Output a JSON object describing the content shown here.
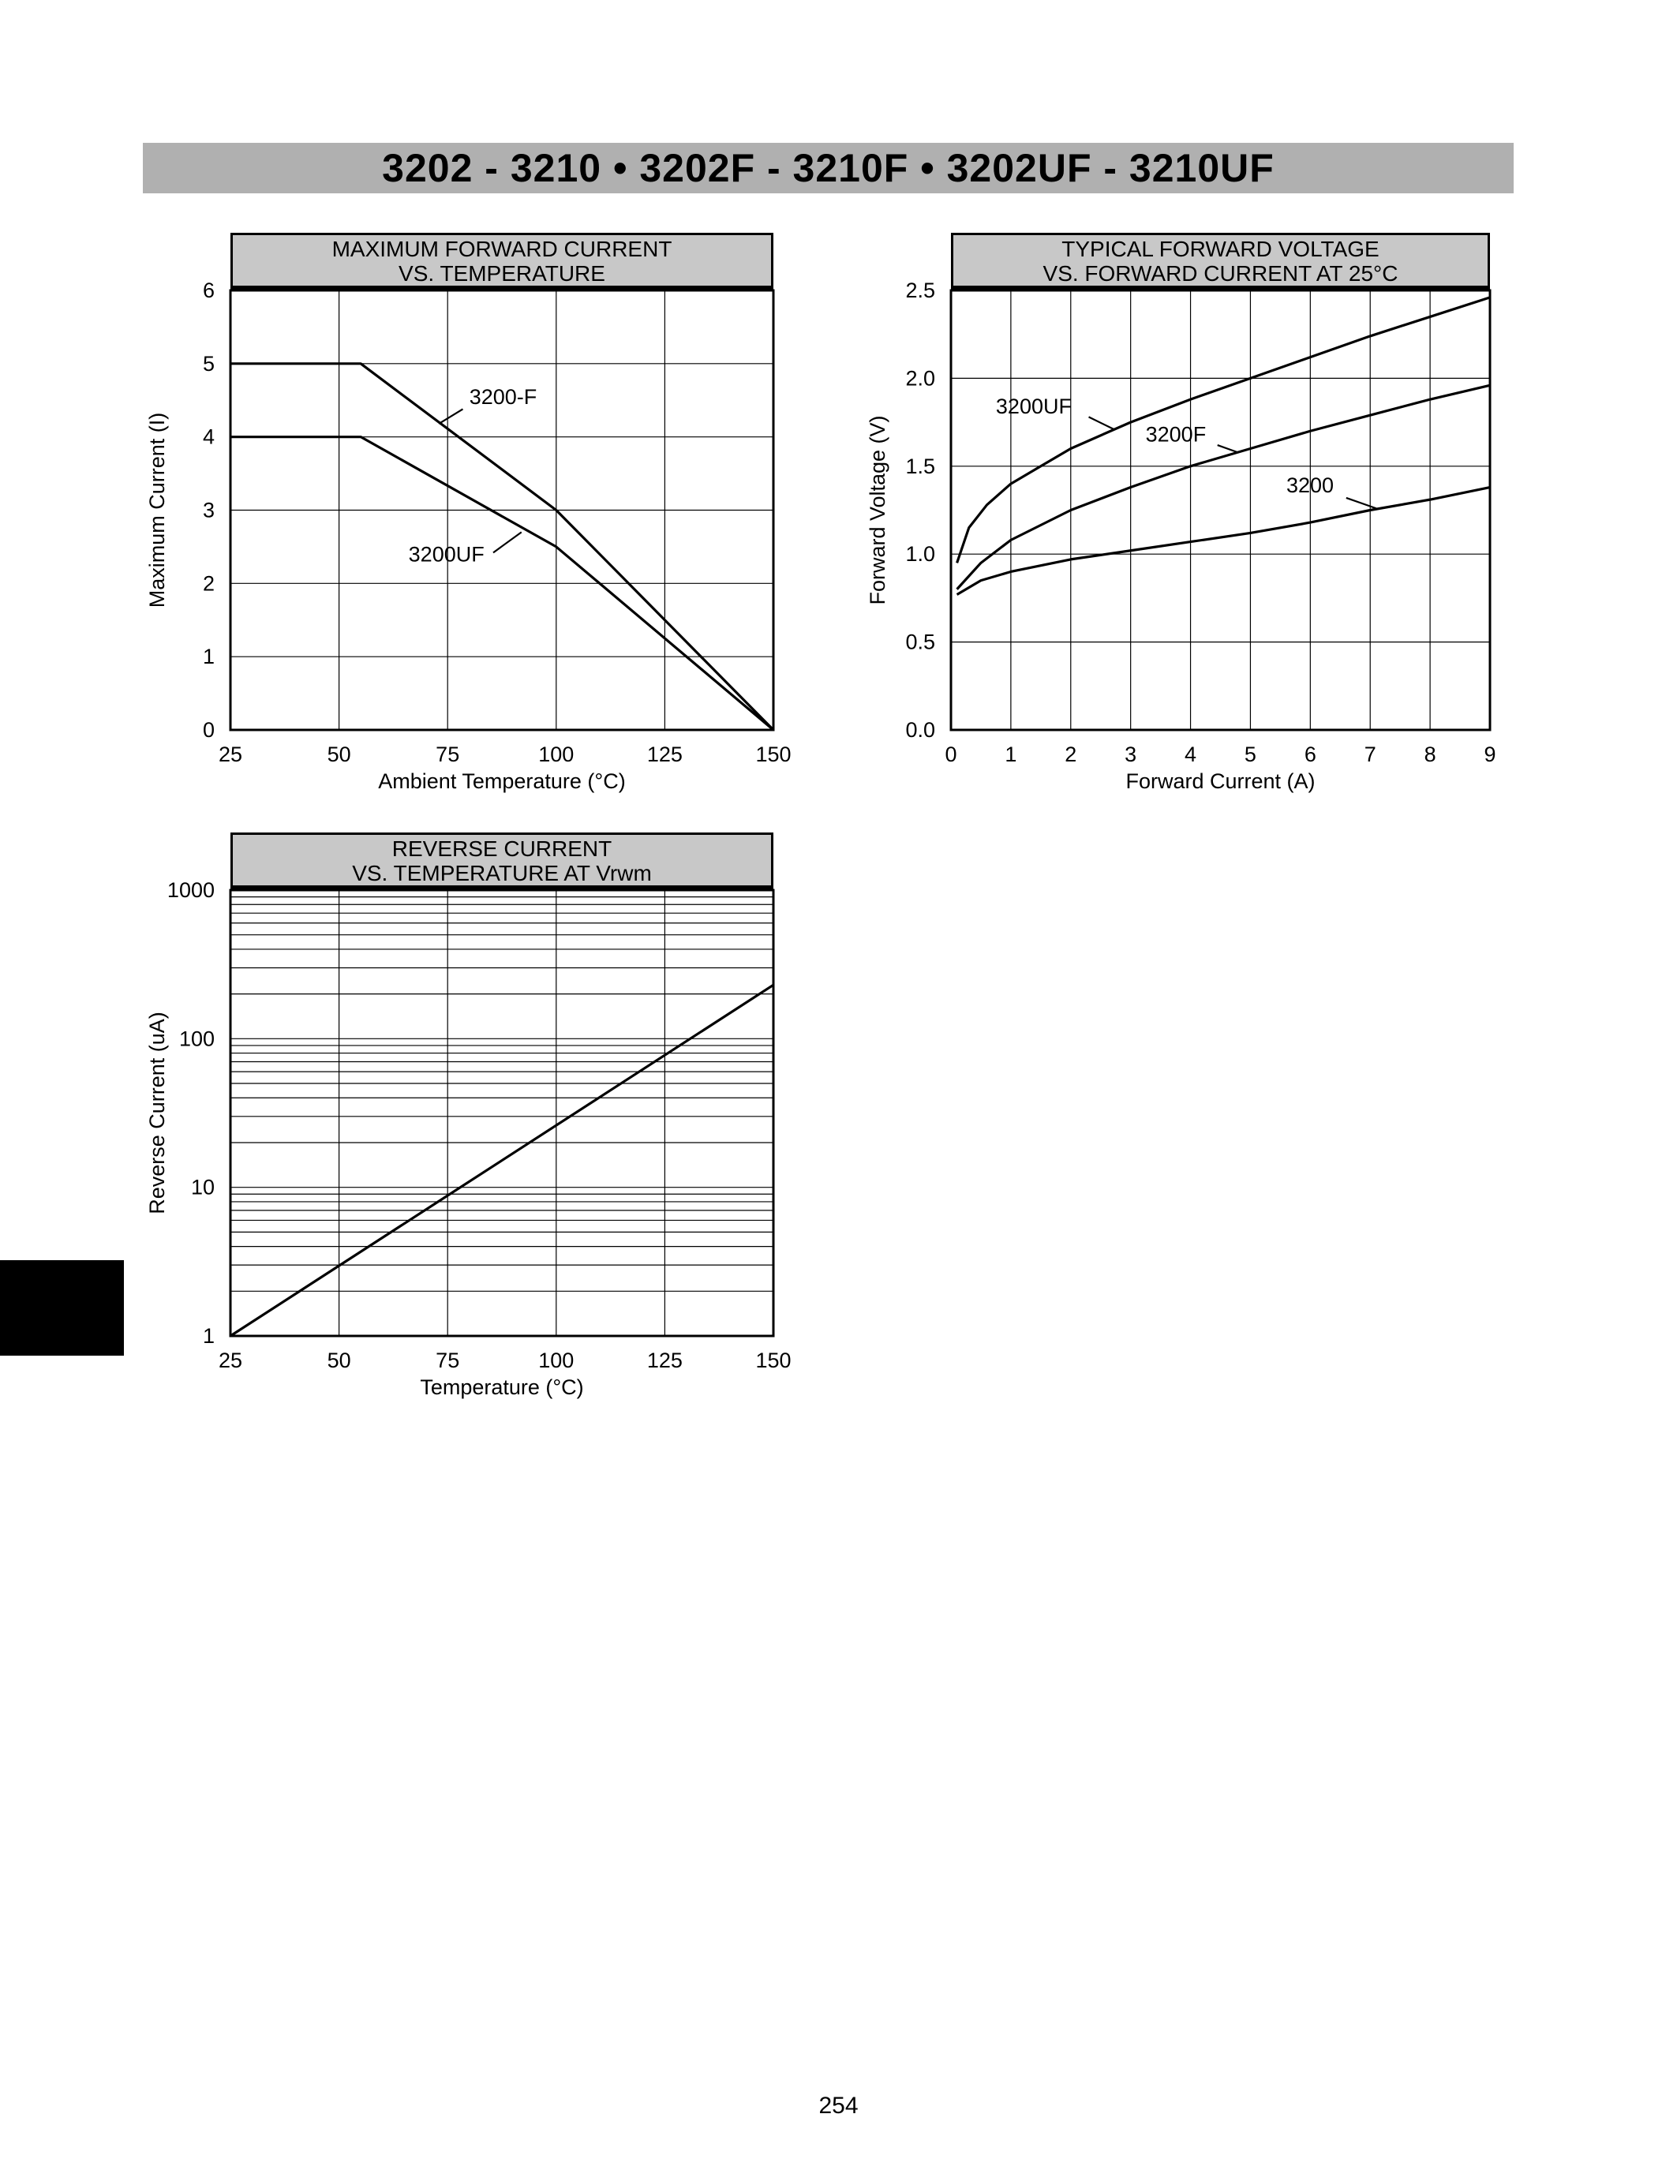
{
  "page": {
    "header": "3202 - 3210 • 3202F - 3210F • 3202UF - 3210UF",
    "page_number": "254"
  },
  "chart_data": [
    {
      "type": "line",
      "title_lines": [
        "MAXIMUM FORWARD CURRENT",
        "VS. TEMPERATURE"
      ],
      "xlabel": "Ambient Temperature (°C)",
      "ylabel": "Maximum Current (I)",
      "xlim": [
        25,
        150
      ],
      "ylim": [
        0,
        6
      ],
      "xticks": [
        25,
        50,
        75,
        100,
        125,
        150
      ],
      "yticks": [
        0,
        1,
        2,
        3,
        4,
        5,
        6
      ],
      "grid": "both",
      "series": [
        {
          "name": "3200-F",
          "points": [
            [
              25,
              5
            ],
            [
              55,
              5
            ],
            [
              100,
              3
            ],
            [
              150,
              0
            ]
          ]
        },
        {
          "name": "3200UF",
          "points": [
            [
              25,
              4
            ],
            [
              55,
              4
            ],
            [
              100,
              2.5
            ],
            [
              150,
              0
            ]
          ]
        }
      ],
      "annotations": [
        {
          "text": "3200-F",
          "x": 80,
          "y": 4.45,
          "leader": [
            [
              78.5,
              4.38
            ],
            [
              73,
              4.18
            ]
          ]
        },
        {
          "text": "3200UF",
          "x": 66,
          "y": 2.3,
          "leader": [
            [
              85.5,
              2.42
            ],
            [
              92,
              2.7
            ]
          ]
        }
      ]
    },
    {
      "type": "line",
      "title_lines": [
        "TYPICAL FORWARD VOLTAGE",
        "VS. FORWARD CURRENT AT 25°C"
      ],
      "xlabel": "Forward Current (A)",
      "ylabel": "Forward Voltage (V)",
      "xlim": [
        0,
        9
      ],
      "ylim": [
        0,
        2.5
      ],
      "xticks": [
        0,
        1,
        2,
        3,
        4,
        5,
        6,
        7,
        8,
        9
      ],
      "yticks": [
        0,
        0.5,
        1,
        1.5,
        2,
        2.5
      ],
      "ytick_labels": [
        "0.0",
        "0.5",
        "1.0",
        "1.5",
        "2.0",
        "2.5"
      ],
      "grid": "both",
      "series": [
        {
          "name": "3200UF",
          "points": [
            [
              0.1,
              0.95
            ],
            [
              0.3,
              1.15
            ],
            [
              0.6,
              1.28
            ],
            [
              1,
              1.4
            ],
            [
              1.5,
              1.5
            ],
            [
              2,
              1.6
            ],
            [
              3,
              1.75
            ],
            [
              4,
              1.88
            ],
            [
              5,
              2.0
            ],
            [
              6,
              2.12
            ],
            [
              7,
              2.24
            ],
            [
              8,
              2.35
            ],
            [
              9,
              2.46
            ]
          ]
        },
        {
          "name": "3200F",
          "points": [
            [
              0.1,
              0.8
            ],
            [
              0.5,
              0.95
            ],
            [
              1,
              1.08
            ],
            [
              2,
              1.25
            ],
            [
              3,
              1.38
            ],
            [
              4,
              1.5
            ],
            [
              5,
              1.6
            ],
            [
              6,
              1.7
            ],
            [
              7,
              1.79
            ],
            [
              8,
              1.88
            ],
            [
              9,
              1.96
            ]
          ]
        },
        {
          "name": "3200",
          "points": [
            [
              0.1,
              0.77
            ],
            [
              0.5,
              0.85
            ],
            [
              1,
              0.9
            ],
            [
              2,
              0.97
            ],
            [
              3,
              1.02
            ],
            [
              4,
              1.07
            ],
            [
              5,
              1.12
            ],
            [
              6,
              1.18
            ],
            [
              7,
              1.25
            ],
            [
              8,
              1.31
            ],
            [
              9,
              1.38
            ]
          ]
        }
      ],
      "annotations": [
        {
          "text": "3200UF",
          "x": 0.75,
          "y": 1.8,
          "leader": [
            [
              2.3,
              1.78
            ],
            [
              2.72,
              1.71
            ]
          ]
        },
        {
          "text": "3200F",
          "x": 3.25,
          "y": 1.64,
          "leader": [
            [
              4.45,
              1.62
            ],
            [
              4.78,
              1.58
            ]
          ]
        },
        {
          "text": "3200",
          "x": 5.6,
          "y": 1.35,
          "leader": [
            [
              6.6,
              1.32
            ],
            [
              7.1,
              1.26
            ]
          ]
        }
      ]
    },
    {
      "type": "line",
      "title_lines": [
        "REVERSE CURRENT",
        "VS. TEMPERATURE AT Vrwm"
      ],
      "xlabel": "Temperature (°C)",
      "ylabel": "Reverse Current (uA)",
      "xlim": [
        25,
        150
      ],
      "ylim": [
        1,
        1000
      ],
      "ylog": true,
      "xticks": [
        25,
        50,
        75,
        100,
        125,
        150
      ],
      "yticks": [
        1,
        10,
        100,
        1000
      ],
      "grid": "both-log-minor",
      "series": [
        {
          "name": "reverse-current",
          "points": [
            [
              25,
              1
            ],
            [
              150,
              230
            ]
          ]
        }
      ],
      "annotations": []
    }
  ]
}
